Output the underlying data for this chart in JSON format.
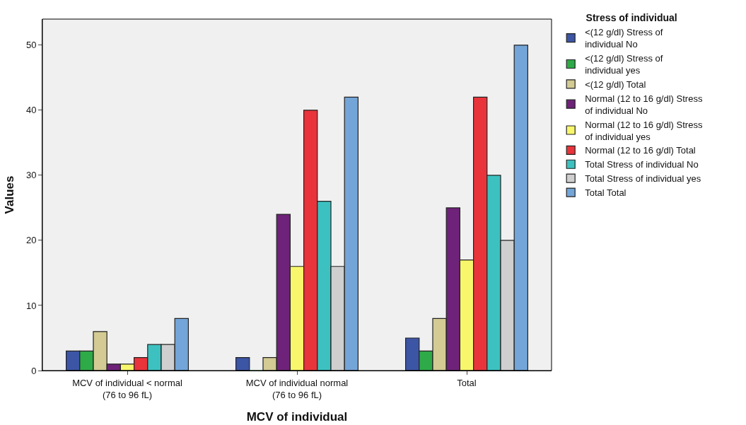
{
  "chart_data": {
    "type": "bar",
    "xlabel": "MCV of individual",
    "ylabel": "Values",
    "legend_title": "Stress of individual",
    "legend": "top right",
    "grid": false,
    "categories": [
      "MCV of individual < normal (76 to 96 fL)",
      "MCV of individual normal (76 to 96 fL)",
      "Total"
    ],
    "ylim": [
      0,
      54
    ],
    "yticks": [
      0,
      10,
      20,
      30,
      40,
      50
    ],
    "series": [
      {
        "name": "<(12 g/dl) Stress of individual No",
        "color": "#3c55a5",
        "values": [
          3,
          2,
          5
        ]
      },
      {
        "name": "<(12 g/dl) Stress of individual yes",
        "color": "#2eaa48",
        "values": [
          3,
          0,
          3
        ]
      },
      {
        "name": "<(12 g/dl) Total",
        "color": "#d3cb93",
        "values": [
          6,
          2,
          8
        ]
      },
      {
        "name": "Normal (12 to 16 g/dl) Stress of individual No",
        "color": "#6f2279",
        "values": [
          1,
          24,
          25
        ]
      },
      {
        "name": "Normal (12 to 16 g/dl) Stress of individual yes",
        "color": "#f8f76c",
        "values": [
          1,
          16,
          17
        ]
      },
      {
        "name": "Normal (12 to 16 g/dl) Total",
        "color": "#e9343b",
        "values": [
          2,
          40,
          42
        ]
      },
      {
        "name": "Total Stress of individual No",
        "color": "#3cc1c0",
        "values": [
          4,
          26,
          30
        ]
      },
      {
        "name": "Total Stress of individual yes",
        "color": "#cfcfcf",
        "values": [
          4,
          16,
          20
        ]
      },
      {
        "name": "Total Total",
        "color": "#73a5d8",
        "values": [
          8,
          42,
          50
        ]
      }
    ]
  }
}
